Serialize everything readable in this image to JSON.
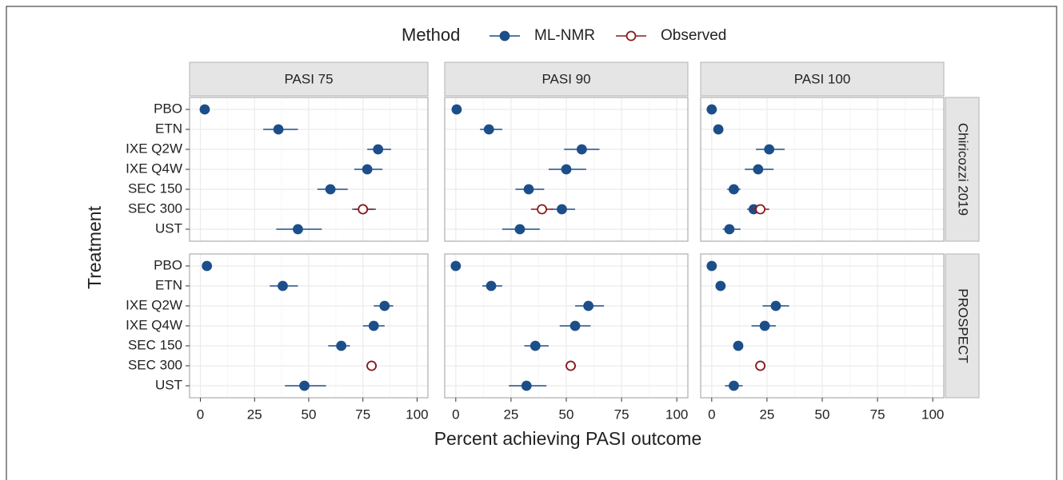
{
  "chart_data": {
    "type": "forest",
    "legend_title": "Method",
    "x_label": "Percent achieving PASI outcome",
    "y_label": "Treatment",
    "facet_columns": [
      "PASI 75",
      "PASI 90",
      "PASI 100"
    ],
    "facet_rows": [
      "Chiricozzi 2019",
      "PROSPECT"
    ],
    "categories": [
      "PBO",
      "ETN",
      "IXE Q2W",
      "IXE Q4W",
      "SEC 150",
      "SEC 300",
      "UST"
    ],
    "xlim": [
      -5,
      105
    ],
    "xticks": [
      0,
      25,
      50,
      75,
      100
    ],
    "grid": true,
    "series": [
      {
        "name": "ML-NMR",
        "color": "#1c4e8a",
        "values": [
          [
            [
              2,
              36,
              82,
              77,
              60,
              75,
              45
            ],
            [
              0.4,
              15,
              57,
              50,
              33,
              48,
              29
            ],
            [
              0,
              3,
              26,
              21,
              10,
              19,
              8
            ]
          ],
          [
            [
              3,
              38,
              85,
              80,
              65,
              79,
              48
            ],
            [
              0,
              16,
              60,
              54,
              36,
              52,
              32
            ],
            [
              0,
              4,
              29,
              24,
              12,
              22,
              10
            ]
          ]
        ],
        "lower": [
          [
            [
              1,
              29,
              77,
              71,
              54,
              70,
              35
            ],
            [
              0,
              11,
              49,
              42,
              27,
              43,
              21
            ],
            [
              0,
              2,
              20,
              15,
              7,
              16,
              5
            ]
          ],
          [
            [
              2,
              32,
              80,
              75,
              59,
              77,
              39
            ],
            [
              0,
              12,
              54,
              47,
              31,
              50,
              24
            ],
            [
              0,
              3,
              23,
              18,
              10,
              20,
              6
            ]
          ]
        ],
        "upper": [
          [
            [
              3,
              45,
              88,
              84,
              68,
              81,
              56
            ],
            [
              1,
              21,
              65,
              59,
              40,
              54,
              38
            ],
            [
              1,
              4,
              33,
              28,
              13,
              23,
              13
            ]
          ],
          [
            [
              4,
              45,
              89,
              85,
              69,
              80,
              58
            ],
            [
              1,
              21,
              67,
              61,
              42,
              54,
              41
            ],
            [
              1,
              5,
              35,
              29,
              14,
              24,
              14
            ]
          ]
        ]
      },
      {
        "name": "Observed",
        "color": "#8b1a1a",
        "values": [
          [
            [
              null,
              null,
              null,
              null,
              null,
              75,
              null
            ],
            [
              null,
              null,
              null,
              null,
              null,
              39,
              null
            ],
            [
              null,
              null,
              null,
              null,
              null,
              22,
              null
            ]
          ],
          [
            [
              null,
              null,
              null,
              null,
              null,
              79,
              null
            ],
            [
              null,
              null,
              null,
              null,
              null,
              52,
              null
            ],
            [
              null,
              null,
              null,
              null,
              null,
              22,
              null
            ]
          ]
        ],
        "lower": [
          [
            [
              null,
              null,
              null,
              null,
              null,
              71,
              null
            ],
            [
              null,
              null,
              null,
              null,
              null,
              34,
              null
            ],
            [
              null,
              null,
              null,
              null,
              null,
              18,
              null
            ]
          ],
          [
            [
              null,
              null,
              null,
              null,
              null,
              78,
              null
            ],
            [
              null,
              null,
              null,
              null,
              null,
              51,
              null
            ],
            [
              null,
              null,
              null,
              null,
              null,
              21,
              null
            ]
          ]
        ],
        "upper": [
          [
            [
              null,
              null,
              null,
              null,
              null,
              80,
              null
            ],
            [
              null,
              null,
              null,
              null,
              null,
              44,
              null
            ],
            [
              null,
              null,
              null,
              null,
              null,
              26,
              null
            ]
          ],
          [
            [
              null,
              null,
              null,
              null,
              null,
              80,
              null
            ],
            [
              null,
              null,
              null,
              null,
              null,
              53,
              null
            ],
            [
              null,
              null,
              null,
              null,
              null,
              23,
              null
            ]
          ]
        ]
      }
    ]
  }
}
